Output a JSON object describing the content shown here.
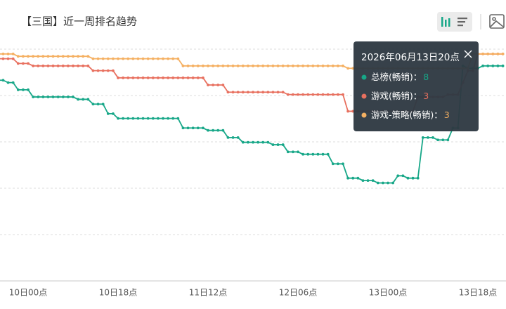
{
  "chart_data": {
    "type": "line",
    "title": "【三国】近一周排名趋势",
    "categories": [
      null,
      null,
      null,
      null,
      null,
      null,
      "10日00点",
      null,
      null,
      null,
      null,
      null,
      null,
      null,
      null,
      null,
      null,
      null,
      null,
      null,
      null,
      null,
      null,
      null,
      "10日18点",
      null,
      null,
      null,
      null,
      null,
      null,
      null,
      null,
      null,
      null,
      null,
      null,
      null,
      null,
      null,
      null,
      null,
      "11日12点",
      null,
      null,
      null,
      null,
      null,
      null,
      null,
      null,
      null,
      null,
      null,
      null,
      null,
      null,
      null,
      null,
      null,
      "12日06点",
      null,
      null,
      null,
      null,
      null,
      null,
      null,
      null,
      null,
      null,
      null,
      null,
      null,
      null,
      null,
      null,
      null,
      "13日00点",
      null,
      null,
      null,
      null,
      null,
      null,
      null,
      null,
      null,
      null,
      null,
      null,
      null,
      null,
      null,
      null,
      null,
      "13日18点",
      null,
      null,
      null,
      null,
      null
    ],
    "series": [
      {
        "name": "总榜(畅销)",
        "color": "#17a788",
        "values": [
          14,
          14,
          15,
          15,
          18,
          18,
          18,
          21,
          21,
          21,
          21,
          21,
          21,
          21,
          21,
          21,
          22,
          22,
          22,
          24,
          24,
          24,
          28,
          28,
          30,
          30,
          30,
          30,
          30,
          30,
          30,
          30,
          30,
          30,
          30,
          30,
          30,
          34,
          34,
          34,
          34,
          34,
          35,
          35,
          35,
          35,
          38,
          38,
          38,
          40,
          40,
          40,
          40,
          40,
          40,
          41,
          41,
          41,
          44,
          44,
          44,
          45,
          45,
          45,
          45,
          45,
          45,
          49,
          49,
          49,
          55,
          55,
          55,
          56,
          56,
          56,
          57,
          57,
          57,
          57,
          54,
          54,
          55,
          55,
          55,
          38,
          38,
          38,
          39,
          39,
          39,
          34,
          34,
          8,
          9,
          9,
          9,
          8,
          8,
          8,
          8,
          8
        ]
      },
      {
        "name": "游戏(畅销)",
        "color": "#e8705f",
        "values": [
          5,
          5,
          5,
          5,
          7,
          7,
          7,
          8,
          8,
          8,
          8,
          8,
          8,
          8,
          8,
          8,
          8,
          8,
          8,
          10,
          10,
          10,
          10,
          10,
          13,
          13,
          13,
          13,
          13,
          13,
          13,
          13,
          13,
          13,
          13,
          13,
          13,
          13,
          13,
          13,
          13,
          13,
          16,
          16,
          16,
          16,
          19,
          19,
          19,
          19,
          19,
          19,
          19,
          19,
          19,
          19,
          19,
          19,
          20,
          20,
          20,
          20,
          20,
          20,
          20,
          20,
          20,
          20,
          20,
          20,
          27,
          27,
          27,
          27,
          27,
          27,
          27,
          27,
          27,
          27,
          27,
          27,
          27,
          27,
          21,
          21,
          21,
          21,
          21,
          21,
          20,
          20,
          20,
          15,
          10,
          10,
          3,
          3,
          3,
          3,
          3,
          3
        ]
      },
      {
        "name": "游戏-策略(畅销)",
        "color": "#f5b062",
        "values": [
          3,
          3,
          3,
          3,
          4,
          4,
          4,
          4,
          4,
          4,
          4,
          4,
          4,
          4,
          4,
          4,
          4,
          4,
          4,
          5,
          5,
          5,
          5,
          5,
          5,
          5,
          5,
          5,
          5,
          5,
          5,
          5,
          5,
          5,
          5,
          5,
          5,
          8,
          8,
          8,
          8,
          8,
          8,
          8,
          8,
          8,
          8,
          8,
          8,
          8,
          8,
          8,
          8,
          8,
          8,
          8,
          8,
          8,
          8,
          8,
          8,
          8,
          8,
          8,
          8,
          8,
          8,
          8,
          8,
          8,
          9,
          9,
          9,
          9,
          9,
          9,
          9,
          9,
          9,
          9,
          9,
          9,
          9,
          9,
          9,
          9,
          9,
          9,
          9,
          9,
          9,
          9,
          9,
          9,
          9,
          3,
          3,
          3,
          3,
          3,
          3,
          3
        ]
      }
    ],
    "ylim": [
      1,
      98
    ],
    "y_inverted": true,
    "grid": true,
    "tooltip": {
      "title": "2026年06月13日20点",
      "separator": "："
    }
  }
}
